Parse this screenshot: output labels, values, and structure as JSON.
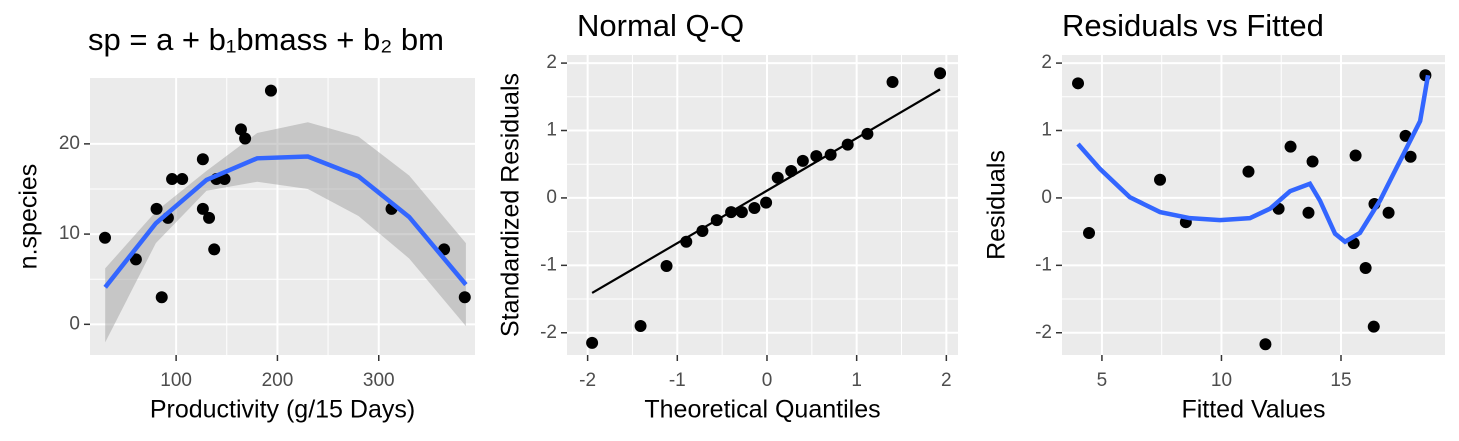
{
  "chart_data": [
    {
      "type": "scatter",
      "title": "sp = a + b₁bmass + b₂ bm",
      "xlabel": "Productivity (g/15 Days)",
      "ylabel": "n.species",
      "x": [
        29.8,
        60.3,
        80.7,
        85.8,
        91.9,
        96,
        106,
        126.4,
        126.4,
        132.5,
        137.6,
        139.7,
        147.8,
        164,
        168.1,
        193.6,
        312.6,
        364.5,
        384.9
      ],
      "values": [
        9.6,
        7.2,
        12.8,
        3.0,
        11.8,
        16.1,
        16.1,
        18.3,
        12.8,
        11.8,
        8.3,
        16.1,
        16.1,
        21.6,
        20.6,
        25.9,
        12.8,
        8.3,
        3.0
      ],
      "color": "#000000",
      "lines": [
        {
          "x": [
            30,
            80,
            130,
            180,
            230,
            280,
            330,
            386
          ],
          "values": [
            4.1,
            11.2,
            16.0,
            18.4,
            18.6,
            16.4,
            11.9,
            4.4
          ],
          "lower": [
            -2.0,
            9.0,
            14.8,
            15.8,
            15.0,
            12.0,
            7.3,
            -0.2
          ],
          "upper": [
            6.2,
            12.5,
            17.0,
            21.2,
            22.4,
            20.8,
            16.5,
            9.0
          ],
          "color": "#3366ff",
          "band_color": "#999999"
        }
      ],
      "xlim": [
        15,
        395
      ],
      "ylim": [
        -3.4,
        27.3
      ],
      "xticks": [
        100,
        200,
        300
      ],
      "yticks": [
        0,
        10,
        20
      ],
      "grid": true
    },
    {
      "type": "scatter",
      "title": "Normal Q-Q",
      "xlabel": "Theoretical Quantiles",
      "ylabel": "Standardized Residuals",
      "x": [
        -1.95,
        -1.41,
        -1.12,
        -0.9,
        -0.72,
        -0.56,
        -0.4,
        -0.28,
        -0.14,
        -0.01,
        0.12,
        0.27,
        0.4,
        0.55,
        0.71,
        0.9,
        1.12,
        1.4,
        1.93
      ],
      "values": [
        -2.15,
        -1.9,
        -1.01,
        -0.65,
        -0.49,
        -0.33,
        -0.21,
        -0.21,
        -0.15,
        -0.07,
        0.3,
        0.4,
        0.55,
        0.62,
        0.64,
        0.79,
        0.95,
        1.72,
        1.85
      ],
      "color": "#000000",
      "lines": [
        {
          "x": [
            -1.95,
            1.93
          ],
          "values": [
            -1.41,
            1.61
          ],
          "color": "#000000"
        }
      ],
      "xlim": [
        -2.23,
        2.13
      ],
      "ylim": [
        -2.33,
        2.12
      ],
      "xticks": [
        -2,
        -1,
        0,
        1,
        2
      ],
      "yticks": [
        -2,
        -1,
        0,
        1,
        2
      ],
      "grid": true
    },
    {
      "type": "scatter",
      "title": "Residuals vs Fitted",
      "xlabel": "Fitted Values",
      "ylabel": "Residuals",
      "x": [
        4.0,
        4.46,
        7.43,
        8.51,
        11.13,
        11.84,
        12.39,
        12.89,
        13.64,
        13.81,
        15.61,
        15.53,
        16.03,
        16.37,
        16.4,
        16.99,
        17.7,
        17.91,
        18.53
      ],
      "values": [
        1.7,
        -0.52,
        0.27,
        -0.36,
        0.39,
        -2.17,
        -0.16,
        0.76,
        -0.22,
        0.54,
        0.63,
        -0.67,
        -1.04,
        -1.91,
        -0.09,
        -0.22,
        0.92,
        0.61,
        1.82
      ],
      "color": "#000000",
      "lines": [
        {
          "x": [
            4.0,
            4.92,
            6.17,
            7.43,
            8.68,
            9.94,
            11.19,
            12.03,
            12.87,
            13.7,
            14.12,
            14.75,
            15.17,
            15.79,
            16.63,
            17.47,
            18.31,
            18.64
          ],
          "values": [
            0.8,
            0.43,
            0.01,
            -0.21,
            -0.3,
            -0.33,
            -0.3,
            -0.16,
            0.1,
            0.21,
            -0.04,
            -0.53,
            -0.65,
            -0.52,
            -0.04,
            0.55,
            1.14,
            1.82
          ],
          "color": "#3366ff"
        }
      ],
      "xlim": [
        3.33,
        19.35
      ],
      "ylim": [
        -2.33,
        2.12
      ],
      "xticks": [
        5,
        10,
        15
      ],
      "yticks": [
        -2,
        -1,
        0,
        1,
        2
      ],
      "grid": true
    }
  ]
}
